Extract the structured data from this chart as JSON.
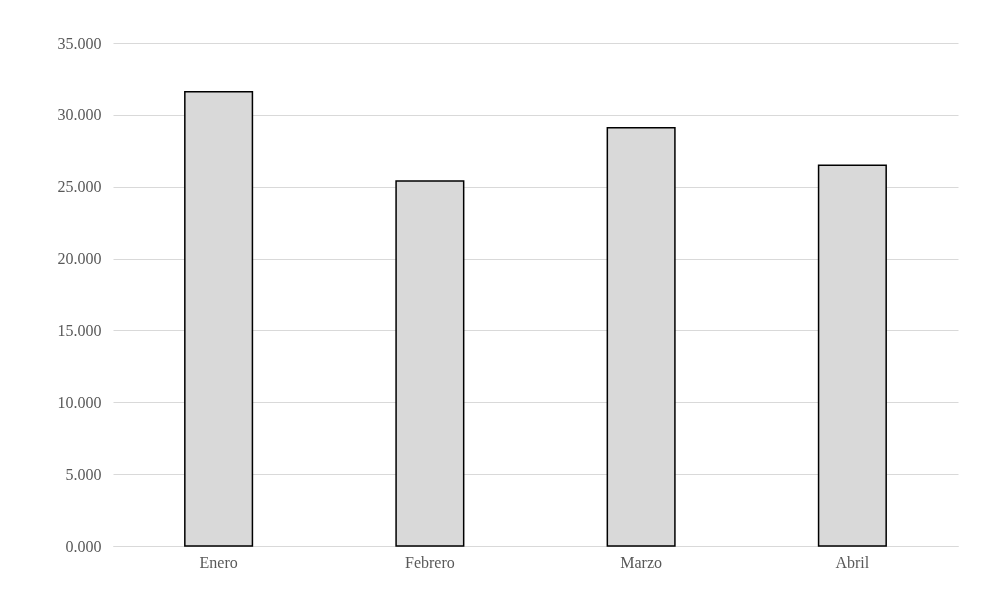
{
  "chart_data": {
    "type": "bar",
    "categories": [
      "Enero",
      "Febrero",
      "Marzo",
      "Abril"
    ],
    "values": [
      31.6,
      25.4,
      29.1,
      26.5
    ],
    "color": "#d9d9d9",
    "ylim": [
      0,
      35
    ],
    "yticks": [
      {
        "value": 0,
        "label": "0.000"
      },
      {
        "value": 5,
        "label": "5.000"
      },
      {
        "value": 10,
        "label": "10.000"
      },
      {
        "value": 15,
        "label": "15.000"
      },
      {
        "value": 20,
        "label": "20.000"
      },
      {
        "value": 25,
        "label": "25.000"
      },
      {
        "value": 30,
        "label": "30.000"
      },
      {
        "value": 35,
        "label": "35.000"
      }
    ],
    "grid": "y"
  }
}
